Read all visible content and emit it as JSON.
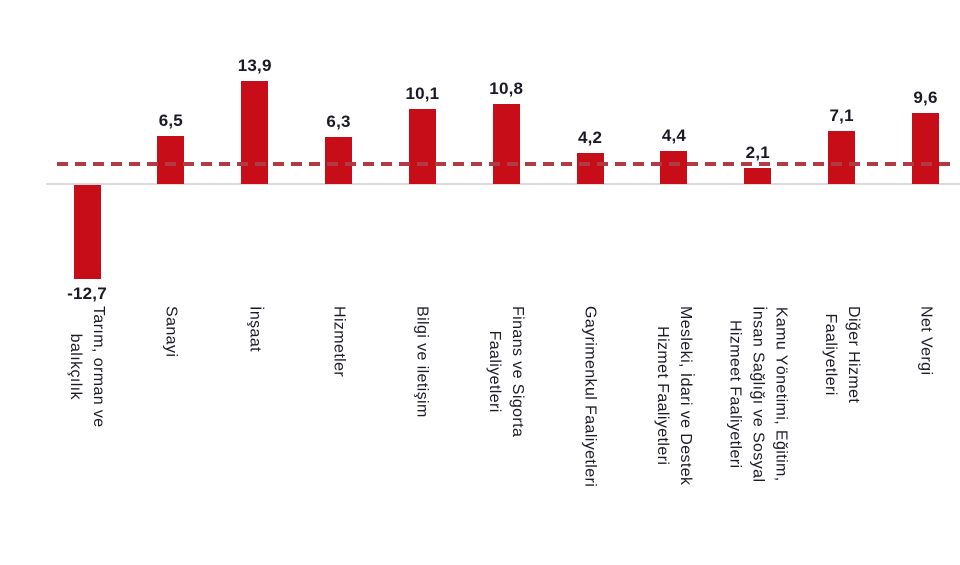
{
  "chart_data": {
    "type": "bar",
    "title": "",
    "xlabel": "",
    "ylabel": "",
    "grid": false,
    "legend": null,
    "ylim": [
      -14,
      16
    ],
    "categories": [
      "Tarım, orman ve balıkçılık",
      "Sanayi",
      "İnşaat",
      "Hizmetler",
      "Bilgi ve iletişim",
      "Finans ve Sigorta Faaliyetleri",
      "Gayrimenkul Faaliyetleri",
      "Mesleki, İdari ve Destek Hizmet Faaliyetleri",
      "Kamu Yönetimi, Eğitim, İnsan Sağlığı ve Sosyal Hizmeet Faaliyetleri",
      "Diğer Hizmet Faaliyetleri",
      "Net Vergi"
    ],
    "category_lines": [
      [
        "Tarım, orman ve",
        "balıkçılık"
      ],
      [
        "Sanayi"
      ],
      [
        "İnşaat"
      ],
      [
        "Hizmetler"
      ],
      [
        "Bilgi ve iletişim"
      ],
      [
        "Finans ve Sigorta",
        "Faaliyetleri"
      ],
      [
        "Gayrimenkul Faaliyetleri"
      ],
      [
        "Mesleki, İdari ve Destek",
        "Hizmet Faaliyetleri"
      ],
      [
        "Kamu Yönetimi, Eğitim,",
        "İnsan Sağlığı ve Sosyal",
        "Hizmeet Faaliyetleri"
      ],
      [
        "Diğer Hizmet",
        "Faaliyetleri"
      ],
      [
        "Net Vergi"
      ]
    ],
    "values": [
      -12.7,
      6.5,
      13.9,
      6.3,
      10.1,
      10.8,
      4.2,
      4.4,
      2.1,
      7.1,
      9.6
    ],
    "value_labels": [
      "-12,7",
      "6,5",
      "13,9",
      "6,3",
      "10,1",
      "10,8",
      "4,2",
      "4,4",
      "2,1",
      "7,1",
      "9,6"
    ],
    "reference_line": {
      "value": 2.7,
      "style": "dashed",
      "color": "#b23b43"
    },
    "bar_color": "#c60d18",
    "value_label_color": "#1a1a24",
    "category_label_color": "#1c1c26",
    "baseline_color": "#d9d9d9"
  }
}
